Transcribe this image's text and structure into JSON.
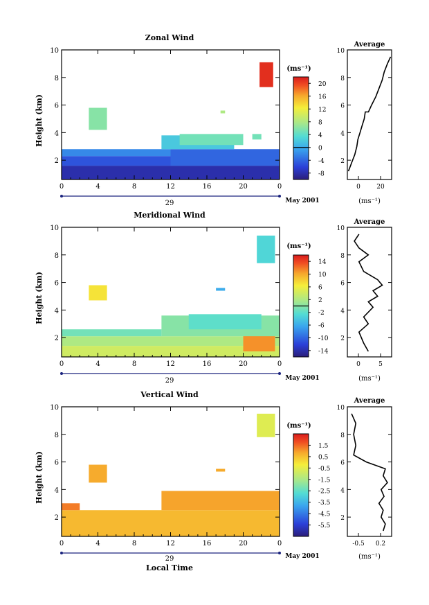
{
  "figure": {
    "date_label": "May 2001",
    "day_label": "29",
    "xlabel_bottom": "Local Time"
  },
  "chart_data": [
    {
      "type": "heatmap",
      "title": "Zonal Wind",
      "ylabel": "Height (km)",
      "xlabel": "",
      "x_ticks": [
        "0",
        "4",
        "8",
        "12",
        "16",
        "20",
        "0"
      ],
      "xlim": [
        0,
        24
      ],
      "ylim": [
        0.6,
        10
      ],
      "y_ticks": [
        2,
        4,
        6,
        8,
        10
      ],
      "colorbar": {
        "label": "(ms⁻¹)",
        "ticks": [
          20,
          16,
          12,
          8,
          4,
          0,
          -4,
          -8
        ],
        "range": [
          -10,
          22
        ],
        "zero_line": 0
      },
      "cells": [
        {
          "x0": 0,
          "x1": 24,
          "y0": 0.6,
          "y1": 1.6,
          "value": -8
        },
        {
          "x0": 0,
          "x1": 12,
          "y0": 1.6,
          "y1": 2.3,
          "value": -5
        },
        {
          "x0": 12,
          "x1": 24,
          "y0": 1.6,
          "y1": 2.8,
          "value": -4
        },
        {
          "x0": 0,
          "x1": 12,
          "y0": 2.3,
          "y1": 2.8,
          "value": -2
        },
        {
          "x0": 11,
          "x1": 19,
          "y0": 2.8,
          "y1": 3.8,
          "value": 2
        },
        {
          "x0": 13,
          "x1": 20,
          "y0": 3.1,
          "y1": 3.9,
          "value": 5
        },
        {
          "x0": 21,
          "x1": 22,
          "y0": 3.5,
          "y1": 3.9,
          "value": 5
        },
        {
          "x0": 3,
          "x1": 5,
          "y0": 4.2,
          "y1": 5.8,
          "value": 6
        },
        {
          "x0": 17.5,
          "x1": 18,
          "y0": 5.4,
          "y1": 5.6,
          "value": 8
        },
        {
          "x0": 21.8,
          "x1": 23.3,
          "y0": 7.3,
          "y1": 9.1,
          "value": 21
        }
      ],
      "profile": {
        "title": "Average",
        "xlabel": "(ms⁻¹)",
        "x_ticks": [
          "0",
          "20"
        ],
        "xlim": [
          -5,
          37
        ],
        "ylim": [
          0.6,
          10
        ],
        "y_ticks": [
          2,
          4,
          6,
          8,
          10
        ],
        "points": [
          [
            -4,
            1.2
          ],
          [
            -2,
            1.6
          ],
          [
            0,
            2.0
          ],
          [
            2,
            2.4
          ],
          [
            4,
            3.0
          ],
          [
            5,
            3.5
          ],
          [
            7,
            4.0
          ],
          [
            9,
            4.5
          ],
          [
            11,
            5.0
          ],
          [
            12,
            5.5
          ],
          [
            15,
            5.5
          ],
          [
            18,
            6.0
          ],
          [
            22,
            6.6
          ],
          [
            25,
            7.2
          ],
          [
            28,
            7.8
          ],
          [
            30,
            8.4
          ],
          [
            33,
            9.0
          ],
          [
            36,
            9.5
          ]
        ]
      }
    },
    {
      "type": "heatmap",
      "title": "Meridional Wind",
      "ylabel": "Height (km)",
      "xlabel": "",
      "x_ticks": [
        "0",
        "4",
        "8",
        "12",
        "16",
        "20",
        "0"
      ],
      "xlim": [
        0,
        24
      ],
      "ylim": [
        0.6,
        10
      ],
      "y_ticks": [
        2,
        4,
        6,
        8,
        10
      ],
      "colorbar": {
        "label": "(ms⁻¹)",
        "ticks": [
          14,
          10,
          6,
          2,
          -2,
          -6,
          -10,
          -14
        ],
        "range": [
          -16,
          16
        ],
        "zero_line": 0
      },
      "cells": [
        {
          "x0": 0,
          "x1": 24,
          "y0": 0.6,
          "y1": 1.4,
          "value": 4
        },
        {
          "x0": 0,
          "x1": 24,
          "y0": 1.4,
          "y1": 2.1,
          "value": 2
        },
        {
          "x0": 20,
          "x1": 23.5,
          "y0": 1.0,
          "y1": 2.2,
          "value": 11
        },
        {
          "x0": 0,
          "x1": 11,
          "y0": 2.1,
          "y1": 2.6,
          "value": -1
        },
        {
          "x0": 11,
          "x1": 24,
          "y0": 2.1,
          "y1": 3.6,
          "value": 0
        },
        {
          "x0": 14,
          "x1": 22,
          "y0": 2.6,
          "y1": 3.7,
          "value": -2
        },
        {
          "x0": 3,
          "x1": 5,
          "y0": 4.7,
          "y1": 5.8,
          "value": 7
        },
        {
          "x0": 17,
          "x1": 18,
          "y0": 5.4,
          "y1": 5.6,
          "value": -6
        },
        {
          "x0": 21.5,
          "x1": 23.5,
          "y0": 7.4,
          "y1": 9.4,
          "value": -3
        }
      ],
      "profile": {
        "title": "Average",
        "xlabel": "(ms⁻¹)",
        "x_ticks": [
          "0",
          "5"
        ],
        "xlim": [
          -1.5,
          8
        ],
        "ylim": [
          0.6,
          10
        ],
        "y_ticks": [
          2,
          4,
          6,
          8,
          10
        ],
        "points": [
          [
            3,
            1.0
          ],
          [
            2,
            1.6
          ],
          [
            1,
            2.4
          ],
          [
            3,
            3.0
          ],
          [
            2,
            3.5
          ],
          [
            4,
            4.2
          ],
          [
            3,
            4.6
          ],
          [
            5,
            5.0
          ],
          [
            4,
            5.4
          ],
          [
            6,
            5.8
          ],
          [
            5,
            6.2
          ],
          [
            2,
            6.8
          ],
          [
            1,
            7.5
          ],
          [
            3,
            8.0
          ],
          [
            1,
            8.5
          ],
          [
            0,
            9.0
          ],
          [
            1,
            9.5
          ]
        ]
      }
    },
    {
      "type": "heatmap",
      "title": "Vertical Wind",
      "ylabel": "Height (km)",
      "xlabel": "Local Time",
      "x_ticks": [
        "0",
        "4",
        "8",
        "12",
        "16",
        "20",
        "0"
      ],
      "xlim": [
        0,
        24
      ],
      "ylim": [
        0.6,
        10
      ],
      "y_ticks": [
        2,
        4,
        6,
        8,
        10
      ],
      "colorbar": {
        "label": "(ms⁻¹)",
        "ticks": [
          1.5,
          0.5,
          -0.5,
          -1.5,
          -2.5,
          -3.5,
          -4.5,
          -5.5
        ],
        "range": [
          -6.5,
          2.5
        ],
        "zero_line": null
      },
      "cells": [
        {
          "x0": 0,
          "x1": 24,
          "y0": 0.6,
          "y1": 2.5,
          "value": 0.6
        },
        {
          "x0": 11,
          "x1": 24,
          "y0": 2.5,
          "y1": 3.9,
          "value": 0.9
        },
        {
          "x0": 0,
          "x1": 2,
          "y0": 2.5,
          "y1": 3.0,
          "value": 1.3
        },
        {
          "x0": 3,
          "x1": 5,
          "y0": 4.5,
          "y1": 5.8,
          "value": 0.8
        },
        {
          "x0": 17,
          "x1": 18,
          "y0": 5.3,
          "y1": 5.5,
          "value": 0.8
        },
        {
          "x0": 21.5,
          "x1": 23.5,
          "y0": 7.8,
          "y1": 9.5,
          "value": -0.6
        }
      ],
      "profile": {
        "title": "Average",
        "xlabel": "(ms⁻¹)",
        "x_ticks": [
          "-0.5",
          "0.2"
        ],
        "xlim": [
          -0.75,
          0.3
        ],
        "ylim": [
          0.6,
          10
        ],
        "y_ticks": [
          2,
          4,
          6,
          8,
          10
        ],
        "points": [
          [
            0.1,
            1.0
          ],
          [
            0.15,
            1.5
          ],
          [
            0.05,
            2.0
          ],
          [
            0.1,
            2.5
          ],
          [
            0.0,
            3.0
          ],
          [
            0.12,
            3.5
          ],
          [
            0.05,
            4.0
          ],
          [
            0.2,
            4.5
          ],
          [
            0.1,
            5.0
          ],
          [
            0.15,
            5.5
          ],
          [
            -0.3,
            6.0
          ],
          [
            -0.6,
            6.5
          ],
          [
            -0.55,
            7.2
          ],
          [
            -0.6,
            8.0
          ],
          [
            -0.55,
            8.8
          ],
          [
            -0.65,
            9.5
          ]
        ]
      }
    }
  ]
}
